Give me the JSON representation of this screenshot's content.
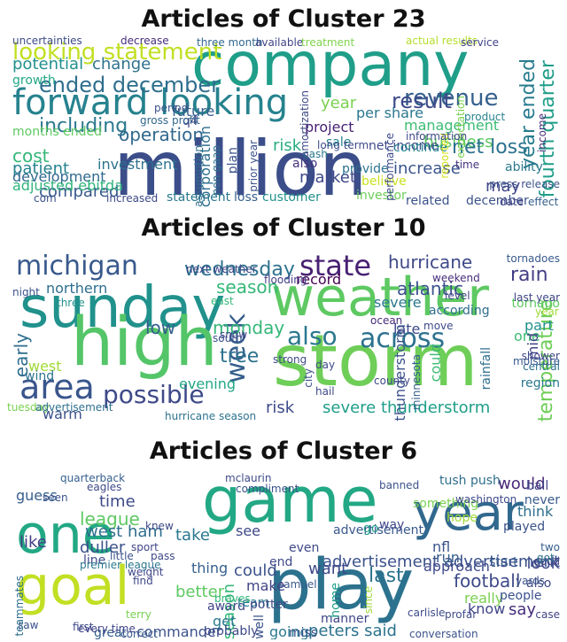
{
  "panels": [
    {
      "title": "Articles of Cluster 23",
      "words": [
        {
          "t": "million",
          "c": "#3b4e8a"
        },
        {
          "t": "company",
          "c": "#1f9e89"
        },
        {
          "t": "forward looking",
          "c": "#26828e"
        },
        {
          "t": "looking statement",
          "c": "#c2df23"
        },
        {
          "t": "ended december",
          "c": "#2e6e8e"
        },
        {
          "t": "revenue",
          "c": "#355f8d"
        },
        {
          "t": "result",
          "c": "#3e4a89"
        },
        {
          "t": "including",
          "c": "#2a788e"
        },
        {
          "t": "operation",
          "c": "#31688e"
        },
        {
          "t": "cost",
          "c": "#35b779"
        },
        {
          "t": "potential",
          "c": "#21918c"
        },
        {
          "t": "change",
          "c": "#2c728e"
        },
        {
          "t": "growth",
          "c": "#22a884"
        },
        {
          "t": "compared",
          "c": "#38598c"
        },
        {
          "t": "management",
          "c": "#3dbc74"
        },
        {
          "t": "business",
          "c": "#5ec962"
        },
        {
          "t": "net loss",
          "c": "#2c728e"
        },
        {
          "t": "fourth quarter",
          "c": "#1f9e89"
        },
        {
          "t": "year ended",
          "c": "#287c8e"
        },
        {
          "t": "corporation",
          "c": "#2e6e8e"
        },
        {
          "t": "market",
          "c": "#3e4989"
        },
        {
          "t": "increase",
          "c": "#3a548c"
        },
        {
          "t": "project",
          "c": "#482173"
        },
        {
          "t": "per share",
          "c": "#2a788e"
        },
        {
          "t": "patient",
          "c": "#26828e"
        },
        {
          "t": "development",
          "c": "#31688e"
        },
        {
          "t": "investment",
          "c": "#2c728e"
        },
        {
          "t": "adjusted ebitda",
          "c": "#2fb47c"
        },
        {
          "t": "future",
          "c": "#355f8d"
        },
        {
          "t": "year",
          "c": "#7ad151"
        },
        {
          "t": "also",
          "c": "#46327e"
        },
        {
          "t": "risk",
          "c": "#27ad81"
        },
        {
          "t": "may",
          "c": "#404588"
        },
        {
          "t": "december",
          "c": "#3b528b"
        },
        {
          "t": "ability",
          "c": "#2a788e"
        },
        {
          "t": "net income",
          "c": "#3e4a89"
        },
        {
          "t": "continue",
          "c": "#26828e"
        },
        {
          "t": "uncertainties",
          "c": "#3e4a89"
        },
        {
          "t": "decrease",
          "c": "#472d7b"
        },
        {
          "t": "three month",
          "c": "#31688e"
        },
        {
          "t": "available",
          "c": "#404588"
        },
        {
          "t": "treatment",
          "c": "#7fd34e"
        },
        {
          "t": "actual results",
          "c": "#b5de2b"
        },
        {
          "t": "service",
          "c": "#414487"
        },
        {
          "t": "months ended",
          "c": "#5ec962"
        },
        {
          "t": "plan",
          "c": "#3b528b"
        },
        {
          "t": "provide",
          "c": "#2c728e"
        },
        {
          "t": "believe",
          "c": "#cae11f"
        },
        {
          "t": "loss",
          "c": "#355f8d"
        },
        {
          "t": "customer",
          "c": "#21918c"
        },
        {
          "t": "investor",
          "c": "#6ece58"
        },
        {
          "t": "related",
          "c": "#3b528b"
        },
        {
          "t": "statement",
          "c": "#2a788e"
        },
        {
          "t": "increased",
          "c": "#3e4a89"
        },
        {
          "t": "com",
          "c": "#3b528b"
        },
        {
          "t": "cash",
          "c": "#2a788e"
        },
        {
          "t": "sale",
          "c": "#26828e"
        },
        {
          "t": "long term",
          "c": "#3e4989"
        },
        {
          "t": "time",
          "c": "#46327e"
        },
        {
          "t": "date",
          "c": "#414487"
        },
        {
          "t": "effect",
          "c": "#355f8d"
        },
        {
          "t": "product",
          "c": "#26828e"
        },
        {
          "t": "q4",
          "c": "#414487"
        },
        {
          "t": "period",
          "c": "#3b528b"
        },
        {
          "t": "gross profit",
          "c": "#31688e"
        },
        {
          "t": "amortization",
          "c": "#3e4a89"
        },
        {
          "t": "non gaap",
          "c": "#2c728e"
        },
        {
          "t": "prior year",
          "c": "#3b528b"
        },
        {
          "t": "assumption",
          "c": "#2e6e8e"
        },
        {
          "t": "reported",
          "c": "#d2e21b"
        },
        {
          "t": "performance",
          "c": "#3e4a89"
        },
        {
          "t": "expectation",
          "c": "#7ad151"
        },
        {
          "t": "press release",
          "c": "#3b528b"
        },
        {
          "t": "information",
          "c": "#3e4989"
        },
        {
          "t": "income",
          "c": "#472d7b"
        }
      ]
    },
    {
      "title": "Articles of Cluster 10",
      "words": [
        {
          "t": "sunday",
          "c": "#21918c"
        },
        {
          "t": "weather",
          "c": "#5ec962"
        },
        {
          "t": "storm",
          "c": "#6ece58"
        },
        {
          "t": "high",
          "c": "#54c568"
        },
        {
          "t": "michigan",
          "c": "#38598c"
        },
        {
          "t": "state",
          "c": "#482173"
        },
        {
          "t": "wednesday",
          "c": "#2c728e"
        },
        {
          "t": "hurricane",
          "c": "#3e4a89"
        },
        {
          "t": "rain",
          "c": "#433e85"
        },
        {
          "t": "area",
          "c": "#39568c"
        },
        {
          "t": "week",
          "c": "#355f8d"
        },
        {
          "t": "also",
          "c": "#2a788e"
        },
        {
          "t": "across",
          "c": "#2c728e"
        },
        {
          "t": "season",
          "c": "#35b779"
        },
        {
          "t": "possible",
          "c": "#3e4a89"
        },
        {
          "t": "low",
          "c": "#355f8d"
        },
        {
          "t": "monday",
          "c": "#35b779"
        },
        {
          "t": "tree",
          "c": "#2c728e"
        },
        {
          "t": "early",
          "c": "#2e6e8e"
        },
        {
          "t": "warm",
          "c": "#3b528b"
        },
        {
          "t": "risk",
          "c": "#3e4a89"
        },
        {
          "t": "severe thunderstorm",
          "c": "#1f9e89"
        },
        {
          "t": "temperature",
          "c": "#6ece58"
        },
        {
          "t": "thunderstorm",
          "c": "#3b528b"
        },
        {
          "t": "atlantic",
          "c": "#3b528b"
        },
        {
          "t": "severe",
          "c": "#2a788e"
        },
        {
          "t": "record",
          "c": "#440154"
        },
        {
          "t": "northern",
          "c": "#2e6e8e"
        },
        {
          "t": "evening",
          "c": "#22a884"
        },
        {
          "t": "according",
          "c": "#2e6e8e"
        },
        {
          "t": "west",
          "c": "#a0da39"
        },
        {
          "t": "wind",
          "c": "#2c728e"
        },
        {
          "t": "could",
          "c": "#3dbc74"
        },
        {
          "t": "part",
          "c": "#21918c"
        },
        {
          "t": "late",
          "c": "#3e4a89"
        },
        {
          "t": "one",
          "c": "#3dbc74"
        },
        {
          "t": "mid",
          "c": "#414487"
        },
        {
          "t": "region",
          "c": "#2a788e"
        },
        {
          "t": "tornado",
          "c": "#5ec962"
        },
        {
          "t": "next weather",
          "c": "#404588"
        },
        {
          "t": "rainfall",
          "c": "#2e6e8e"
        },
        {
          "t": "tuesday",
          "c": "#7ad151"
        },
        {
          "t": "flooding",
          "c": "#433e85"
        },
        {
          "t": "ocean",
          "c": "#472d7b"
        },
        {
          "t": "move",
          "c": "#3e4989"
        },
        {
          "t": "central",
          "c": "#2c728e"
        },
        {
          "t": "shower",
          "c": "#404588"
        },
        {
          "t": "strong",
          "c": "#3e4a89"
        },
        {
          "t": "day",
          "c": "#3e4989"
        },
        {
          "t": "hail",
          "c": "#3e4a89"
        },
        {
          "t": "minnesota",
          "c": "#355f8d"
        },
        {
          "t": "advertisement",
          "c": "#2e6e8e"
        },
        {
          "t": "snow",
          "c": "#404588"
        },
        {
          "t": "east",
          "c": "#35b779"
        },
        {
          "t": "last year",
          "c": "#404588"
        },
        {
          "t": "weekend",
          "c": "#472d7b"
        },
        {
          "t": "tornadoes",
          "c": "#38598c"
        },
        {
          "t": "hurricane season",
          "c": "#2c728e"
        },
        {
          "t": "three",
          "c": "#21918c"
        },
        {
          "t": "south",
          "c": "#3b528b"
        },
        {
          "t": "year",
          "c": "#a0da39"
        },
        {
          "t": "level",
          "c": "#414487"
        },
        {
          "t": "city",
          "c": "#3b528b"
        },
        {
          "t": "county",
          "c": "#3e4a89"
        },
        {
          "t": "night",
          "c": "#3b528b"
        },
        {
          "t": "moisture",
          "c": "#38598c"
        }
      ]
    },
    {
      "title": "Articles of Cluster 6",
      "words": [
        {
          "t": "game",
          "c": "#22a884"
        },
        {
          "t": "play",
          "c": "#2c728e"
        },
        {
          "t": "one",
          "c": "#22a884"
        },
        {
          "t": "goal",
          "c": "#c2df23"
        },
        {
          "t": "year",
          "c": "#31688e"
        },
        {
          "t": "season",
          "c": "#35b779"
        },
        {
          "t": "advertisement",
          "c": "#38598c"
        },
        {
          "t": "advertisement advertisement",
          "c": "#3b528b"
        },
        {
          "t": "time",
          "c": "#3e4a89"
        },
        {
          "t": "league",
          "c": "#5ec962"
        },
        {
          "t": "west ham",
          "c": "#2e6e8e"
        },
        {
          "t": "duller",
          "c": "#3b528b"
        },
        {
          "t": "take",
          "c": "#2a788e"
        },
        {
          "t": "see",
          "c": "#3e4989"
        },
        {
          "t": "like",
          "c": "#433e85"
        },
        {
          "t": "guess",
          "c": "#355f8d"
        },
        {
          "t": "would",
          "c": "#482878"
        },
        {
          "t": "look",
          "c": "#3e4a89"
        },
        {
          "t": "say",
          "c": "#472d7b"
        },
        {
          "t": "could",
          "c": "#3b528b"
        },
        {
          "t": "last",
          "c": "#2c728e"
        },
        {
          "t": "want",
          "c": "#3e4a89"
        },
        {
          "t": "football",
          "c": "#3e4a89"
        },
        {
          "t": "really",
          "c": "#7ad151"
        },
        {
          "t": "peters said",
          "c": "#2c728e"
        },
        {
          "t": "thing",
          "c": "#355f8d"
        },
        {
          "t": "make",
          "c": "#414487"
        },
        {
          "t": "better",
          "c": "#5ec962"
        },
        {
          "t": "get",
          "c": "#2a788e"
        },
        {
          "t": "award",
          "c": "#404588"
        },
        {
          "t": "played",
          "c": "#3b528b"
        },
        {
          "t": "think",
          "c": "#2e6e8e"
        },
        {
          "t": "never",
          "c": "#38598c"
        },
        {
          "t": "also",
          "c": "#3e4a89"
        },
        {
          "t": "go",
          "c": "#1f9e89"
        },
        {
          "t": "nfl",
          "c": "#3b528b"
        },
        {
          "t": "run",
          "c": "#355f8d"
        },
        {
          "t": "team",
          "c": "#2a788e"
        },
        {
          "t": "people",
          "c": "#3b528b"
        },
        {
          "t": "know",
          "c": "#404588"
        },
        {
          "t": "going",
          "c": "#2a788e"
        },
        {
          "t": "miss",
          "c": "#3b528b"
        },
        {
          "t": "manner",
          "c": "#404588"
        },
        {
          "t": "great",
          "c": "#355f8d"
        },
        {
          "t": "commander",
          "c": "#3b528b"
        },
        {
          "t": "potter",
          "c": "#3e4a89"
        },
        {
          "t": "braves",
          "c": "#35b779"
        },
        {
          "t": "end",
          "c": "#3e4989"
        },
        {
          "t": "even",
          "c": "#3e4a89"
        },
        {
          "t": "way",
          "c": "#404588"
        },
        {
          "t": "banned",
          "c": "#3b528b"
        },
        {
          "t": "something",
          "c": "#7ad151"
        },
        {
          "t": "approach",
          "c": "#3e4a89"
        },
        {
          "t": "start",
          "c": "#38598c"
        },
        {
          "t": "ball",
          "c": "#404588"
        },
        {
          "t": "well",
          "c": "#3b528b"
        },
        {
          "t": "home",
          "c": "#1f9e89"
        },
        {
          "t": "hope",
          "c": "#a0da39"
        },
        {
          "t": "line",
          "c": "#3e4a89"
        },
        {
          "t": "weight",
          "c": "#404588"
        },
        {
          "t": "pass",
          "c": "#3e4989"
        },
        {
          "t": "probably",
          "c": "#3e4a89"
        },
        {
          "t": "correct",
          "c": "#38598c"
        },
        {
          "t": "case",
          "c": "#414487"
        },
        {
          "t": "good",
          "c": "#414487"
        },
        {
          "t": "yards",
          "c": "#3b528b"
        },
        {
          "t": "got",
          "c": "#2c728e"
        },
        {
          "t": "two",
          "c": "#355f8d"
        },
        {
          "t": "tush push",
          "c": "#2e6e8e"
        },
        {
          "t": "seen",
          "c": "#3b528b"
        },
        {
          "t": "quarterback",
          "c": "#355f8d"
        },
        {
          "t": "eagles",
          "c": "#3e4a89"
        },
        {
          "t": "sport",
          "c": "#404588"
        },
        {
          "t": "little",
          "c": "#3b528b"
        },
        {
          "t": "terry",
          "c": "#7ad151"
        },
        {
          "t": "first",
          "c": "#3e4a89"
        },
        {
          "t": "saw",
          "c": "#3b528b"
        },
        {
          "t": "teammates",
          "c": "#2e6e8e"
        },
        {
          "t": "premier league",
          "c": "#2a788e"
        },
        {
          "t": "every time",
          "c": "#404588"
        },
        {
          "t": "mclaurin",
          "c": "#3e4a89"
        },
        {
          "t": "compliment",
          "c": "#3b528b"
        },
        {
          "t": "samuel",
          "c": "#38598c"
        },
        {
          "t": "carlisle",
          "c": "#3e4a89"
        },
        {
          "t": "profar",
          "c": "#3e4a89"
        },
        {
          "t": "conversation",
          "c": "#3b528b"
        },
        {
          "t": "washington",
          "c": "#3e4a89"
        },
        {
          "t": "since",
          "c": "#a0da39"
        },
        {
          "t": "knew",
          "c": "#3e4a89"
        },
        {
          "t": "find",
          "c": "#3e4989"
        }
      ]
    }
  ]
}
